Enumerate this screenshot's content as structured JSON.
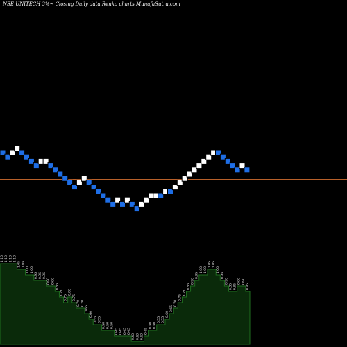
{
  "header": {
    "title": "NSE UNITECH 3%~ Closing Daily data Renko charts MunafaSutra.com"
  },
  "colors": {
    "background": "#000000",
    "up_brick": "#ffffff",
    "down_brick": "#1e6ee6",
    "brick_border": "#000000",
    "reference_line": "#b8602a",
    "lower_panel_fill": "#0a2a0a",
    "lower_panel_border": "#1f6e1f",
    "label_color": "#ffffff"
  },
  "chart_data": {
    "type": "renko",
    "title": "NSE UNITECH 3%~ Closing Daily data Renko charts MunafaSutra.com",
    "bricks": [
      {
        "level": 0,
        "dir": "down"
      },
      {
        "level": -1,
        "dir": "down"
      },
      {
        "level": 0,
        "dir": "up"
      },
      {
        "level": 1,
        "dir": "up"
      },
      {
        "level": 0,
        "dir": "down"
      },
      {
        "level": -1,
        "dir": "down"
      },
      {
        "level": -2,
        "dir": "down"
      },
      {
        "level": -3,
        "dir": "down"
      },
      {
        "level": -2,
        "dir": "up"
      },
      {
        "level": -2,
        "dir": "up"
      },
      {
        "level": -3,
        "dir": "down"
      },
      {
        "level": -4,
        "dir": "down"
      },
      {
        "level": -5,
        "dir": "down"
      },
      {
        "level": -6,
        "dir": "down"
      },
      {
        "level": -7,
        "dir": "down"
      },
      {
        "level": -8,
        "dir": "down"
      },
      {
        "level": -7,
        "dir": "up"
      },
      {
        "level": -6,
        "dir": "up"
      },
      {
        "level": -7,
        "dir": "down"
      },
      {
        "level": -8,
        "dir": "down"
      },
      {
        "level": -9,
        "dir": "down"
      },
      {
        "level": -10,
        "dir": "down"
      },
      {
        "level": -11,
        "dir": "down"
      },
      {
        "level": -12,
        "dir": "down"
      },
      {
        "level": -11,
        "dir": "up"
      },
      {
        "level": -12,
        "dir": "down"
      },
      {
        "level": -11,
        "dir": "up"
      },
      {
        "level": -12,
        "dir": "down"
      },
      {
        "level": -13,
        "dir": "down"
      },
      {
        "level": -12,
        "dir": "up"
      },
      {
        "level": -11,
        "dir": "up"
      },
      {
        "level": -10,
        "dir": "up"
      },
      {
        "level": -10,
        "dir": "up"
      },
      {
        "level": -10,
        "dir": "down"
      },
      {
        "level": -9,
        "dir": "up"
      },
      {
        "level": -9,
        "dir": "down"
      },
      {
        "level": -8,
        "dir": "up"
      },
      {
        "level": -7,
        "dir": "up"
      },
      {
        "level": -6,
        "dir": "up"
      },
      {
        "level": -5,
        "dir": "up"
      },
      {
        "level": -4,
        "dir": "up"
      },
      {
        "level": -3,
        "dir": "up"
      },
      {
        "level": -2,
        "dir": "up"
      },
      {
        "level": -1,
        "dir": "up"
      },
      {
        "level": 0,
        "dir": "up"
      },
      {
        "level": 0,
        "dir": "down"
      },
      {
        "level": -1,
        "dir": "down"
      },
      {
        "level": -2,
        "dir": "down"
      },
      {
        "level": -3,
        "dir": "down"
      },
      {
        "level": -4,
        "dir": "down"
      },
      {
        "level": -3,
        "dir": "up"
      },
      {
        "level": -4,
        "dir": "down"
      }
    ],
    "reference_lines": [
      {
        "level": -1.2
      },
      {
        "level": -6.2
      }
    ],
    "lower_panel_labels": [
      "1.10",
      "1.10",
      "1.10",
      "1.10",
      "1.05",
      "1.05",
      "1.00",
      "1.00",
      "0.95",
      "0.95",
      "0.95",
      "0.90",
      "0.90",
      "0.85",
      "0.80",
      "0.75",
      "0.80",
      "0.75",
      "0.70",
      "0.70",
      "0.65",
      "0.60",
      "0.55",
      "0.55",
      "0.50",
      "0.50",
      "0.50",
      "0.45",
      "0.45",
      "0.45",
      "0.45",
      "0.40",
      "0.40",
      "0.40",
      "0.45",
      "0.50",
      "0.50",
      "0.55",
      "0.55",
      "0.60",
      "0.65",
      "0.70",
      "0.75",
      "0.80",
      "0.85",
      "0.90",
      "0.95",
      "1.00",
      "1.00",
      "1.05",
      "1.05",
      "1.00",
      "0.95",
      "0.90",
      "0.85",
      "0.85",
      "0.90",
      "0.90",
      "0.85"
    ]
  }
}
